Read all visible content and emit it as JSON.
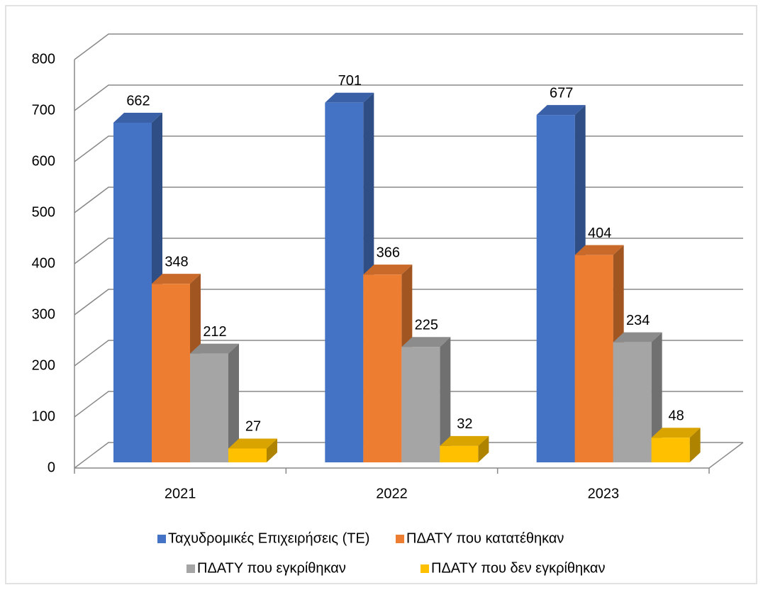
{
  "chart_data": {
    "type": "bar",
    "categories": [
      "2021",
      "2022",
      "2023"
    ],
    "series": [
      {
        "name": "Ταχυδρομικές Επιχειρήσεις (ΤΕ)",
        "color": "#4472c4",
        "values": [
          662,
          701,
          677
        ]
      },
      {
        "name": "ΠΔΑΤΥ που κατατέθηκαν",
        "color": "#ed7d31",
        "values": [
          348,
          366,
          404
        ]
      },
      {
        "name": "ΠΔΑΤΥ που εγκρίθηκαν",
        "color": "#a5a5a5",
        "values": [
          212,
          225,
          234
        ]
      },
      {
        "name": "ΠΔΑΤΥ που δεν εγκρίθηκαν",
        "color": "#ffc000",
        "values": [
          27,
          32,
          48
        ]
      }
    ],
    "ylim": [
      0,
      800
    ],
    "yticks": [
      0,
      100,
      200,
      300,
      400,
      500,
      600,
      700,
      800
    ],
    "grid": true,
    "legend": "bottom"
  }
}
